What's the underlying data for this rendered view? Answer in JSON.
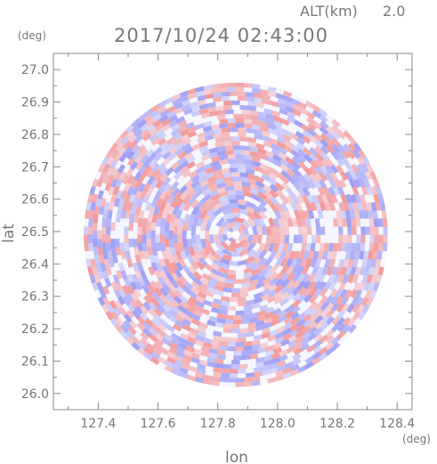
{
  "header": {
    "altitude_label": "ALT(km)",
    "altitude_value": "2.0",
    "datetime": "2017/10/24 02:43:00"
  },
  "chart_data": {
    "type": "heatmap",
    "title": "2017/10/24 02:43:00",
    "xlabel": "lon",
    "ylabel": "lat",
    "x_unit": "(deg)",
    "y_unit": "(deg)",
    "xlim": [
      127.25,
      128.45
    ],
    "ylim": [
      25.95,
      27.05
    ],
    "x_ticks": [
      127.4,
      127.6,
      127.8,
      128.0,
      128.2,
      128.4
    ],
    "x_tick_labels": [
      "127.4",
      "127.6",
      "127.8",
      "128.0",
      "128.2",
      "128.4"
    ],
    "y_ticks": [
      26.0,
      26.1,
      26.2,
      26.3,
      26.4,
      26.5,
      26.6,
      26.7,
      26.8,
      26.9,
      27.0
    ],
    "y_tick_labels": [
      "26.0",
      "26.1",
      "26.2",
      "26.3",
      "26.4",
      "26.5",
      "26.6",
      "26.7",
      "26.8",
      "26.9",
      "27.0"
    ],
    "scan_center": {
      "lon": 127.86,
      "lat": 26.49
    },
    "scan_radius_deg_lat": 0.47,
    "colors": {
      "positive": "#f28f8f",
      "negative": "#8f8ff2",
      "neutral": "#f6f6ff",
      "axis": "#777777"
    }
  }
}
